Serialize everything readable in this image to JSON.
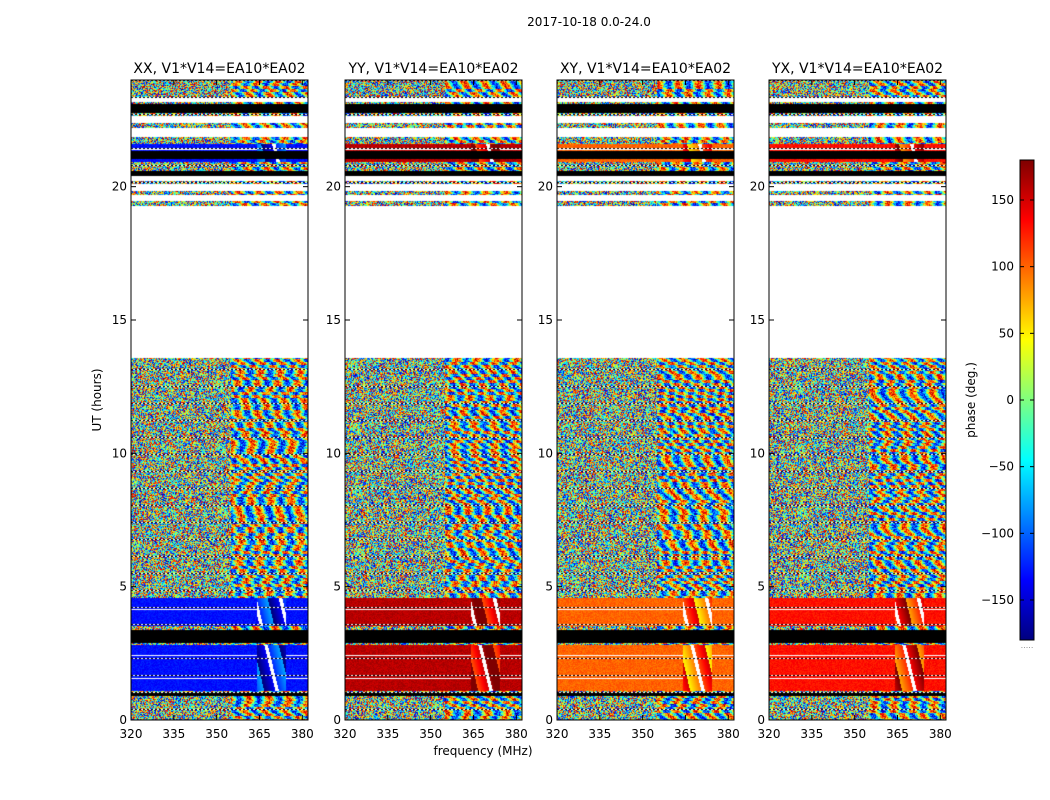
{
  "figure_title": "2017-10-18 0.0-24.0",
  "chart_data": {
    "type": "heatmap",
    "title": "2017-10-18 0.0-24.0",
    "xlabel": "frequency (MHz)",
    "ylabel": "UT (hours)",
    "xlim": [
      320,
      382
    ],
    "ylim": [
      0,
      24
    ],
    "xticks": [
      320,
      335,
      350,
      365,
      380
    ],
    "yticks": [
      0,
      5,
      10,
      15,
      20
    ],
    "colorbar": {
      "label": "phase (deg.)",
      "range": [
        -180,
        180
      ],
      "ticks": [
        150,
        100,
        50,
        0,
        -50,
        -100,
        -150
      ],
      "tick_labels": [
        "150",
        "100",
        "50",
        "0",
        "−50",
        "−100",
        "−150"
      ],
      "colormap": [
        "#00007f",
        "#0000ff",
        "#007fff",
        "#00ffff",
        "#7fff7f",
        "#ffff00",
        "#ff7f00",
        "#ff0000",
        "#7f0000"
      ],
      "footnote": "....."
    },
    "panels": [
      {
        "title": "XX, V1*V14=EA10*EA02",
        "calibrated_phase_deg": -130
      },
      {
        "title": "YY, V1*V14=EA10*EA02",
        "calibrated_phase_deg": 160
      },
      {
        "title": "XY, V1*V14=EA10*EA02",
        "calibrated_phase_deg": 100
      },
      {
        "title": "YX, V1*V14=EA10*EA02",
        "calibrated_phase_deg": 130
      }
    ],
    "flagged_ut_hours": [
      [
        2.9,
        3.4
      ],
      [
        0.92,
        1.04
      ],
      [
        20.4,
        20.6
      ],
      [
        22.8,
        23.1
      ],
      [
        21.05,
        21.35
      ]
    ],
    "blank_ut_hours": [
      [
        13.6,
        19.3
      ],
      [
        19.5,
        19.7
      ],
      [
        19.85,
        20.1
      ],
      [
        20.25,
        20.4
      ],
      [
        21.9,
        22.2
      ],
      [
        22.4,
        22.65
      ],
      [
        23.2,
        23.35
      ]
    ],
    "calibrated_ut_hours": [
      [
        1.1,
        2.85
      ],
      [
        3.55,
        4.6
      ],
      [
        20.95,
        21.6
      ]
    ],
    "calibrator_fringes_mhz": [
      364,
      374
    ]
  }
}
